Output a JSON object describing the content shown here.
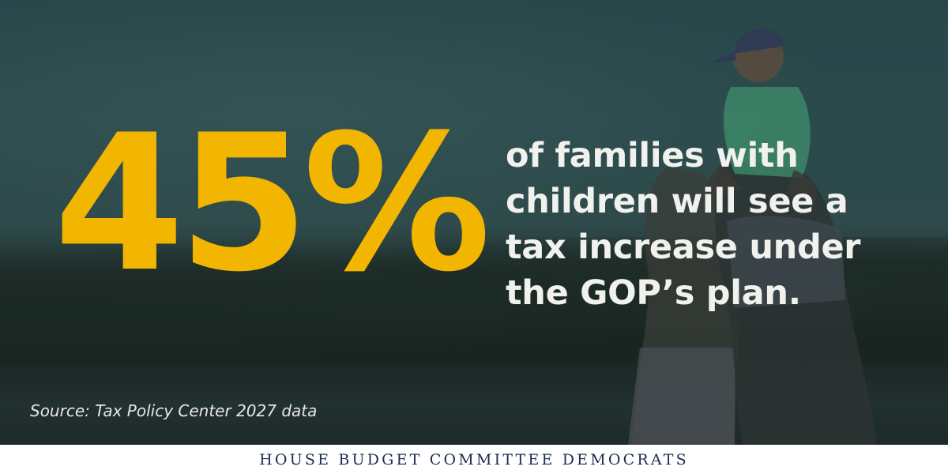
{
  "stat": {
    "value": "45%"
  },
  "headline": {
    "lines": [
      "of families with",
      "children will see a",
      "tax increase under",
      "the GOP’s plan."
    ]
  },
  "source": {
    "text": "Source: Tax Policy Center 2027 data"
  },
  "footer": {
    "organization": "HOUSE BUDGET COMMITTEE DEMOCRATS"
  },
  "colors": {
    "stat": "#f2b600",
    "headline": "#f1f1ee",
    "footer_text": "#1e2b4f",
    "overlay": "#2b4a4c"
  }
}
